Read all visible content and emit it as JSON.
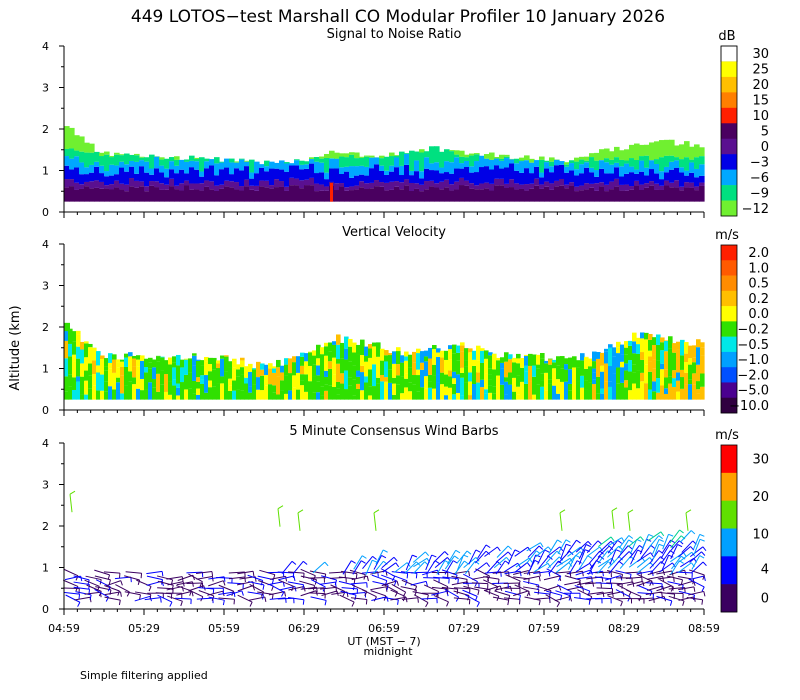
{
  "chart_data": {
    "title": "449 LOTOS−test Marshall CO Modular Profiler 10 January 2026",
    "ylabel": "Altitude (km)",
    "xlabel": "UT  (MST − 7)",
    "x_sublabel": "midnight",
    "footer": "Simple filtering applied",
    "x_ticks": [
      "04:59",
      "05:29",
      "05:59",
      "06:29",
      "06:59",
      "07:29",
      "07:59",
      "08:29",
      "08:59"
    ],
    "y_ticks": [
      "0",
      "1",
      "2",
      "3",
      "4"
    ],
    "ylim": [
      0,
      4
    ],
    "panels": [
      {
        "type": "heatmap",
        "title": "Signal to Noise Ratio",
        "unit": "dB",
        "levels": [
          "30",
          "25",
          "20",
          "15",
          "10",
          "5",
          "0",
          "−3",
          "−6",
          "−9",
          "−12"
        ],
        "colors": [
          "#ffffff",
          "#ffff00",
          "#ffbf00",
          "#ff7f00",
          "#ff2000",
          "#4a0060",
          "#5a1090",
          "#0000e6",
          "#00a8ff",
          "#00e080",
          "#70f030"
        ],
        "noise_top_km": [
          2.1,
          1.4,
          1.35,
          1.3,
          1.25,
          1.2,
          1.15,
          1.2,
          1.5,
          1.3,
          1.4,
          1.5,
          1.4,
          1.35,
          1.3,
          1.2,
          1.5,
          1.6,
          1.7,
          1.6
        ],
        "data_top_km": [
          1.5,
          1.4,
          1.35,
          1.3,
          1.3,
          1.25,
          1.2,
          1.25,
          1.35,
          1.3,
          1.4,
          1.55,
          1.35,
          1.3,
          1.2,
          1.2,
          1.3,
          1.3,
          1.3,
          1.3
        ]
      },
      {
        "type": "heatmap",
        "title": "Vertical Velocity",
        "unit": "m/s",
        "levels": [
          "2.0",
          "1.0",
          "0.5",
          "0.2",
          "0.0",
          "−0.2",
          "−0.5",
          "−1.0",
          "−2.0",
          "−5.0",
          "−10.0"
        ],
        "colors": [
          "#ff2000",
          "#ff5a00",
          "#ff8c00",
          "#ffbf00",
          "#ffff00",
          "#30e000",
          "#00e8e8",
          "#00a0ff",
          "#0050ff",
          "#4a0090",
          "#300040"
        ],
        "data_top_km": [
          2.1,
          1.3,
          1.3,
          1.3,
          1.3,
          1.2,
          1.05,
          1.3,
          1.75,
          1.6,
          1.4,
          1.5,
          1.55,
          1.3,
          1.3,
          1.2,
          1.4,
          1.8,
          1.7,
          1.6
        ]
      },
      {
        "type": "barbs",
        "title": "5 Minute Consensus Wind Barbs",
        "unit": "m/s",
        "levels": [
          "30",
          "20",
          "10",
          "4",
          "0"
        ],
        "colors": [
          "#ff0000",
          "#ffa000",
          "#60e000",
          "#00a0ff",
          "#0000ff",
          "#3a0060"
        ],
        "speed_ticks": [
          0,
          4,
          10,
          20,
          30
        ]
      }
    ]
  }
}
